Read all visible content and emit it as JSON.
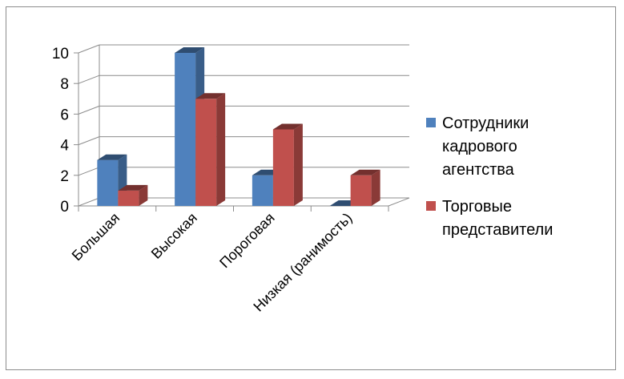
{
  "chart_data": {
    "type": "bar",
    "title": "",
    "xlabel": "",
    "ylabel": "",
    "categories": [
      "Большая",
      "Высокая",
      "Пороговая",
      "Низкая (ранимость)"
    ],
    "series": [
      {
        "name": "Сотрудники кадрового агентства",
        "color": "#4f81bd",
        "values": [
          3,
          10,
          2,
          0
        ]
      },
      {
        "name": "Торговые представители",
        "color": "#c0504d",
        "values": [
          1,
          7,
          5,
          2
        ]
      }
    ],
    "ylim": [
      0,
      10
    ],
    "yticks": [
      0,
      2,
      4,
      6,
      8,
      10
    ],
    "grid": true,
    "legend_position": "right",
    "style": "3d-clustered-column"
  }
}
